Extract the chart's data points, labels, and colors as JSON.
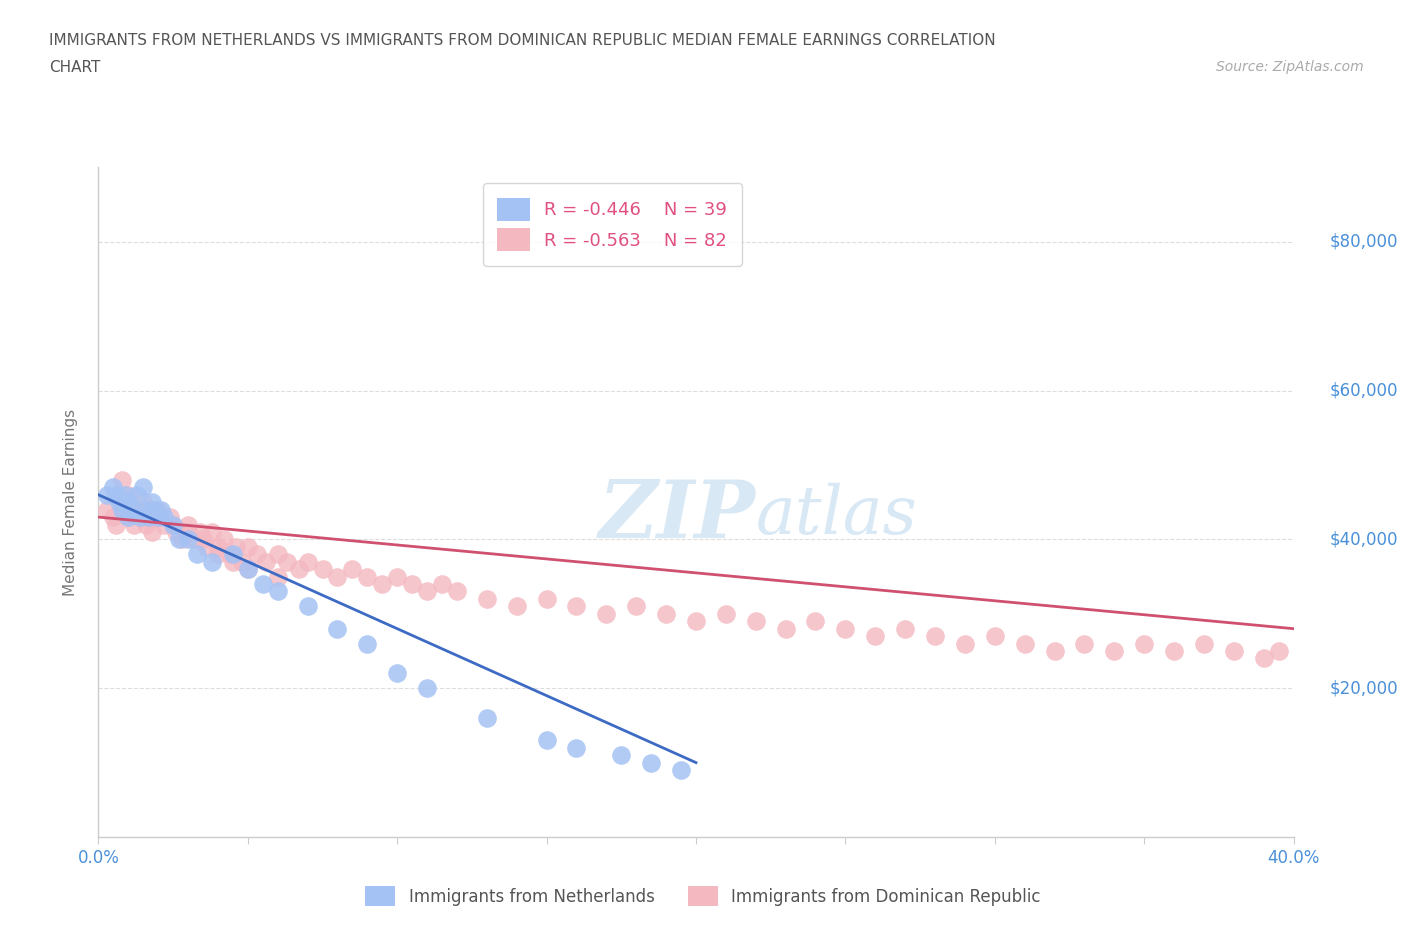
{
  "title_line1": "IMMIGRANTS FROM NETHERLANDS VS IMMIGRANTS FROM DOMINICAN REPUBLIC MEDIAN FEMALE EARNINGS CORRELATION",
  "title_line2": "CHART",
  "source": "Source: ZipAtlas.com",
  "ylabel": "Median Female Earnings",
  "xlim": [
    0.0,
    0.4
  ],
  "ylim": [
    0,
    90000
  ],
  "yticks": [
    20000,
    40000,
    60000,
    80000
  ],
  "ytick_labels": [
    "$20,000",
    "$40,000",
    "$60,000",
    "$80,000"
  ],
  "xticks": [
    0.0,
    0.05,
    0.1,
    0.15,
    0.2,
    0.25,
    0.3,
    0.35,
    0.4
  ],
  "xtick_labels": [
    "0.0%",
    "",
    "",
    "",
    "",
    "",
    "",
    "",
    "40.0%"
  ],
  "netherlands_color": "#a4c2f4",
  "dominican_color": "#f4b8c1",
  "regression_netherlands_color": "#3d6bc4",
  "regression_dominican_color": "#d05070",
  "legend_r_netherlands": "R = -0.446",
  "legend_n_netherlands": "N = 39",
  "legend_r_dominican": "R = -0.563",
  "legend_n_dominican": "N = 82",
  "tick_label_color": "#4a90d9",
  "ylabel_color": "#777777",
  "watermark_color": "#d8e8f5",
  "netherlands_x": [
    0.003,
    0.005,
    0.006,
    0.007,
    0.008,
    0.009,
    0.01,
    0.01,
    0.012,
    0.013,
    0.014,
    0.015,
    0.016,
    0.017,
    0.018,
    0.019,
    0.02,
    0.021,
    0.022,
    0.025,
    0.027,
    0.03,
    0.033,
    0.038,
    0.045,
    0.05,
    0.055,
    0.06,
    0.07,
    0.08,
    0.09,
    0.1,
    0.11,
    0.13,
    0.15,
    0.16,
    0.175,
    0.185,
    0.195
  ],
  "netherlands_y": [
    46000,
    47000,
    46000,
    45000,
    44000,
    46000,
    43000,
    45000,
    44000,
    46000,
    43000,
    47000,
    44000,
    43000,
    45000,
    44000,
    43000,
    44000,
    43000,
    42000,
    40000,
    40000,
    38000,
    37000,
    38000,
    36000,
    34000,
    33000,
    31000,
    28000,
    26000,
    22000,
    20000,
    16000,
    13000,
    12000,
    11000,
    10000,
    9000
  ],
  "dominican_x": [
    0.003,
    0.005,
    0.006,
    0.008,
    0.01,
    0.012,
    0.013,
    0.015,
    0.016,
    0.018,
    0.02,
    0.022,
    0.024,
    0.026,
    0.028,
    0.03,
    0.032,
    0.034,
    0.036,
    0.038,
    0.04,
    0.042,
    0.044,
    0.046,
    0.048,
    0.05,
    0.053,
    0.056,
    0.06,
    0.063,
    0.067,
    0.07,
    0.075,
    0.08,
    0.085,
    0.09,
    0.095,
    0.1,
    0.105,
    0.11,
    0.115,
    0.12,
    0.13,
    0.14,
    0.15,
    0.16,
    0.17,
    0.18,
    0.19,
    0.2,
    0.21,
    0.22,
    0.23,
    0.24,
    0.25,
    0.26,
    0.27,
    0.28,
    0.29,
    0.3,
    0.31,
    0.32,
    0.33,
    0.34,
    0.35,
    0.36,
    0.37,
    0.38,
    0.39,
    0.395,
    0.008,
    0.01,
    0.015,
    0.018,
    0.02,
    0.025,
    0.03,
    0.035,
    0.04,
    0.045,
    0.05,
    0.06
  ],
  "dominican_y": [
    44000,
    43000,
    42000,
    44000,
    43000,
    42000,
    44000,
    43000,
    42000,
    41000,
    44000,
    42000,
    43000,
    41000,
    40000,
    42000,
    40000,
    41000,
    39000,
    41000,
    39000,
    40000,
    38000,
    39000,
    37000,
    39000,
    38000,
    37000,
    38000,
    37000,
    36000,
    37000,
    36000,
    35000,
    36000,
    35000,
    34000,
    35000,
    34000,
    33000,
    34000,
    33000,
    32000,
    31000,
    32000,
    31000,
    30000,
    31000,
    30000,
    29000,
    30000,
    29000,
    28000,
    29000,
    28000,
    27000,
    28000,
    27000,
    26000,
    27000,
    26000,
    25000,
    26000,
    25000,
    26000,
    25000,
    26000,
    25000,
    24000,
    25000,
    48000,
    46000,
    45000,
    44000,
    43000,
    42000,
    41000,
    40000,
    38000,
    37000,
    36000,
    35000
  ]
}
